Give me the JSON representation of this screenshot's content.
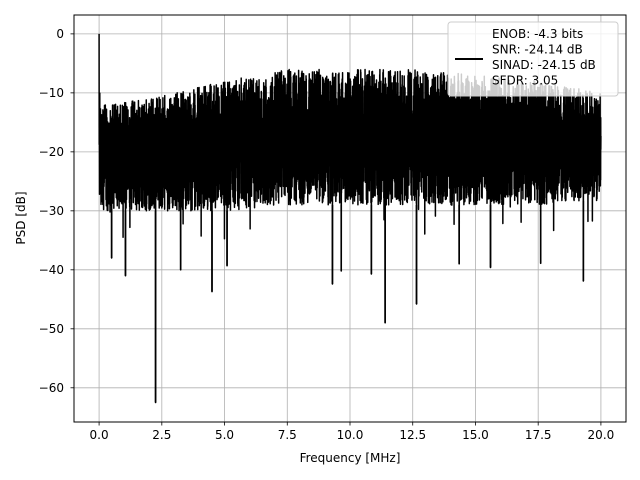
{
  "chart_data": {
    "type": "line",
    "xlabel": "Frequency [MHz]",
    "ylabel": "PSD [dB]",
    "xlim": [
      -1.0,
      21.0
    ],
    "ylim": [
      -65.8,
      3.2
    ],
    "xticks": [
      0.0,
      2.5,
      5.0,
      7.5,
      10.0,
      12.5,
      15.0,
      17.5,
      20.0
    ],
    "xtick_labels": [
      "0.0",
      "2.5",
      "5.0",
      "7.5",
      "10.0",
      "12.5",
      "15.0",
      "17.5",
      "20.0"
    ],
    "yticks": [
      0,
      -10,
      -20,
      -30,
      -40,
      -50,
      -60
    ],
    "ytick_labels": [
      "0",
      "−10",
      "−20",
      "−30",
      "−40",
      "−50",
      "−60"
    ],
    "grid": true,
    "legend_position": "top-right",
    "series": [
      {
        "name": "ENOB: -4.3 bits\nSNR: -24.14 dB\nSINAD: -24.15 dB\nSFDR: 3.05",
        "color": "#000000",
        "freq_range": [
          0.0,
          20.0
        ],
        "peak": {
          "x": 0.0,
          "y": 0.0
        },
        "noise_floor_upper": {
          "x": [
            0.1,
            2,
            5,
            7.5,
            10,
            12.5,
            15,
            17.5,
            20
          ],
          "y": [
            -12,
            -11,
            -8,
            -6,
            -6,
            -6,
            -7,
            -8,
            -10
          ]
        },
        "noise_floor_lower": {
          "x": [
            0.1,
            2,
            5,
            7.5,
            10,
            12.5,
            15,
            17.5,
            20
          ],
          "y": [
            -30,
            -30,
            -30,
            -29,
            -29,
            -29,
            -29,
            -29,
            -28
          ]
        },
        "notable_dips": [
          {
            "x": 0.5,
            "y": -38.0
          },
          {
            "x": 1.05,
            "y": -41.0
          },
          {
            "x": 2.25,
            "y": -62.5
          },
          {
            "x": 3.25,
            "y": -40.0
          },
          {
            "x": 4.5,
            "y": -43.7
          },
          {
            "x": 5.1,
            "y": -39.3
          },
          {
            "x": 9.3,
            "y": -42.4
          },
          {
            "x": 9.65,
            "y": -40.2
          },
          {
            "x": 10.85,
            "y": -40.7
          },
          {
            "x": 11.4,
            "y": -49.0
          },
          {
            "x": 12.65,
            "y": -45.8
          },
          {
            "x": 14.35,
            "y": -39.0
          },
          {
            "x": 15.6,
            "y": -39.6
          },
          {
            "x": 17.6,
            "y": -38.9
          },
          {
            "x": 19.3,
            "y": -41.9
          }
        ]
      }
    ]
  }
}
